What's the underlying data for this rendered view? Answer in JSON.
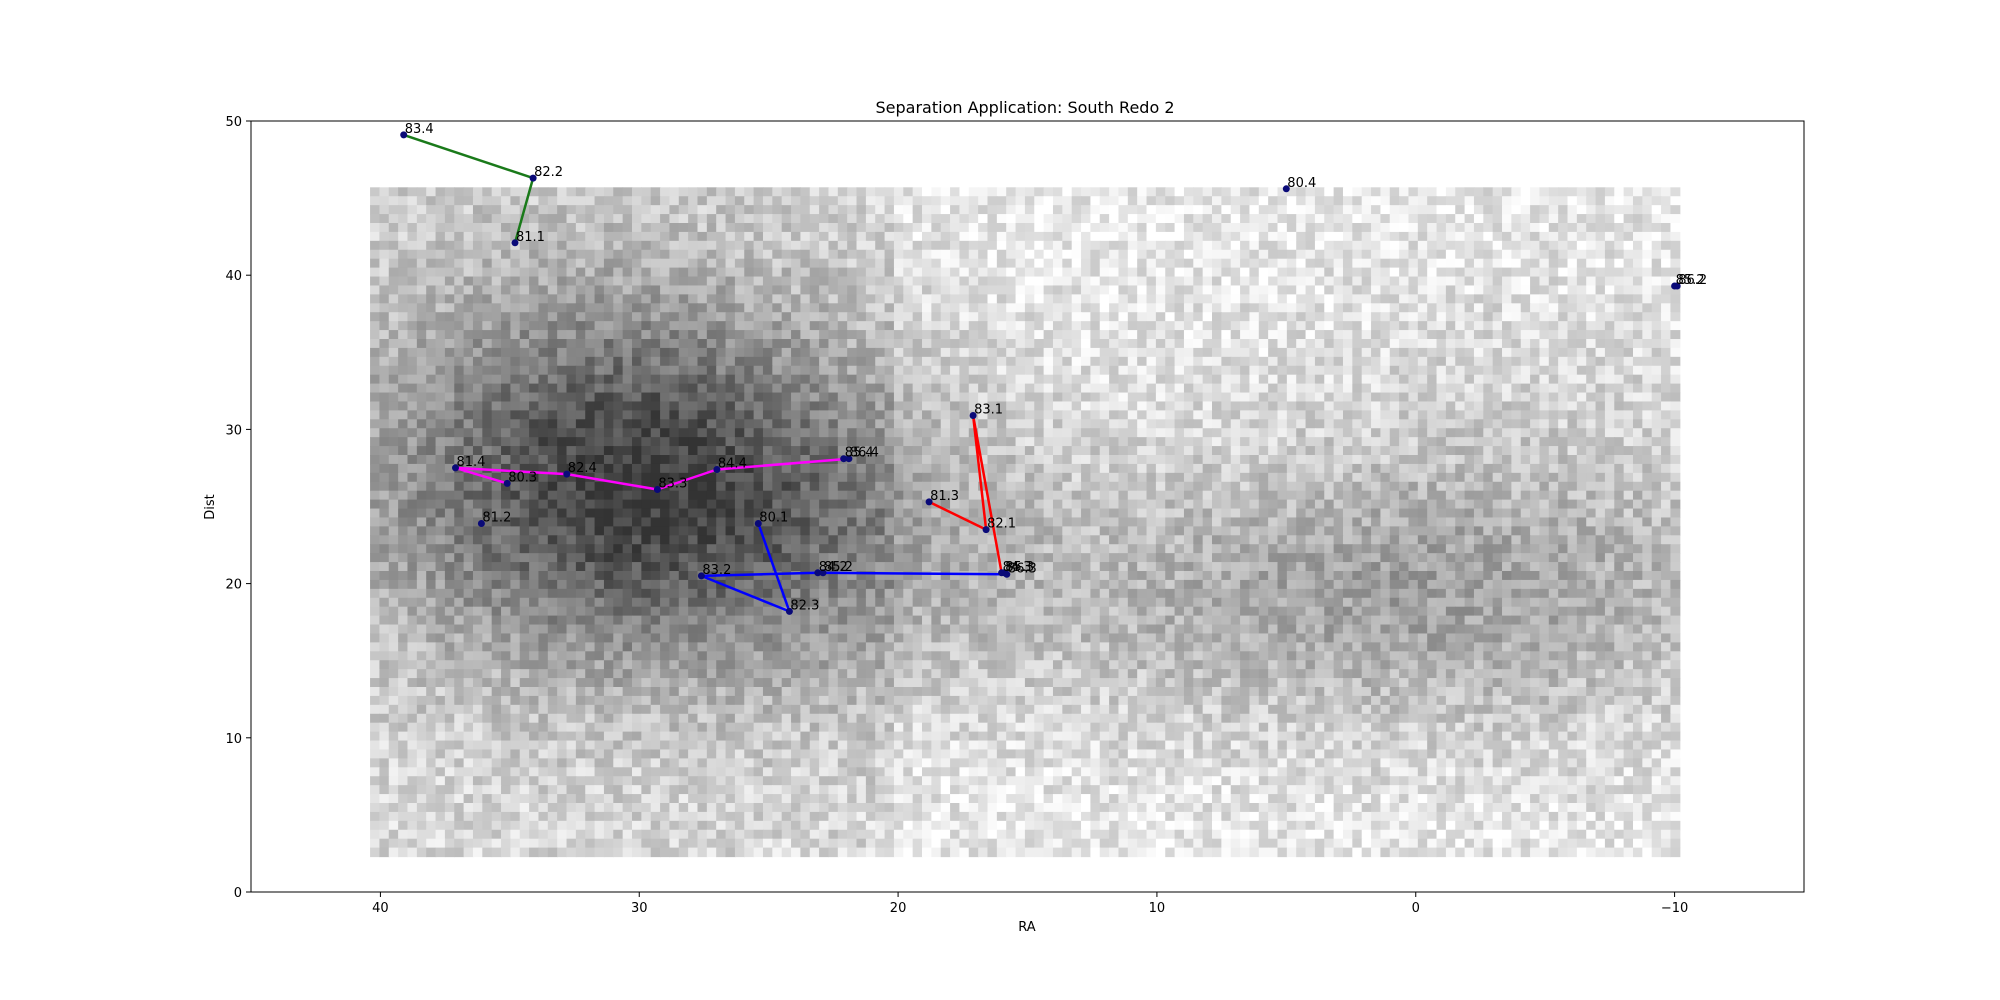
{
  "chart_data": {
    "type": "scatter",
    "title": "Separation Application: South Redo 2",
    "xlabel": "RA",
    "ylabel": "Dist",
    "xlim": [
      45,
      -15
    ],
    "ylim": [
      0,
      50
    ],
    "x_axis_inverted": true,
    "x_ticks": [
      40,
      30,
      20,
      10,
      0,
      -10
    ],
    "x_tick_labels": [
      "40",
      "30",
      "20",
      "10",
      "0",
      "−10"
    ],
    "y_ticks": [
      0,
      10,
      20,
      30,
      40,
      50
    ],
    "y_tick_labels": [
      "0",
      "10",
      "20",
      "30",
      "40",
      "50"
    ],
    "grid": false,
    "background": {
      "type": "2d-histogram",
      "colormap": "greys",
      "x_range": [
        40.4,
        -10.2
      ],
      "y_range": [
        2.3,
        45.7
      ]
    },
    "marker_color": "#0a0a78",
    "points": [
      {
        "label": "83.4",
        "x": 39.1,
        "y": 49.1
      },
      {
        "label": "82.2",
        "x": 34.1,
        "y": 46.3
      },
      {
        "label": "81.1",
        "x": 34.8,
        "y": 42.1
      },
      {
        "label": "80.4",
        "x": 5.0,
        "y": 45.6
      },
      {
        "label": "86.2",
        "x": -10.1,
        "y": 39.3
      },
      {
        "label": "85.2",
        "x": -10.0,
        "y": 39.3
      },
      {
        "label": "83.1",
        "x": 17.1,
        "y": 30.9
      },
      {
        "label": "81.3",
        "x": 18.8,
        "y": 25.3
      },
      {
        "label": "82.1",
        "x": 16.6,
        "y": 23.5
      },
      {
        "label": "84.3",
        "x": 16.0,
        "y": 20.7
      },
      {
        "label": "85.3",
        "x": 15.9,
        "y": 20.7
      },
      {
        "label": "81.4",
        "x": 37.1,
        "y": 27.5
      },
      {
        "label": "80.3",
        "x": 35.1,
        "y": 26.5
      },
      {
        "label": "82.4",
        "x": 32.8,
        "y": 27.1
      },
      {
        "label": "83.3",
        "x": 29.3,
        "y": 26.1
      },
      {
        "label": "84.4",
        "x": 27.0,
        "y": 27.4
      },
      {
        "label": "85.4",
        "x": 22.1,
        "y": 28.1
      },
      {
        "label": "86.4",
        "x": 21.9,
        "y": 28.1
      },
      {
        "label": "81.2",
        "x": 36.1,
        "y": 23.9
      },
      {
        "label": "80.1",
        "x": 25.4,
        "y": 23.9
      },
      {
        "label": "83.2",
        "x": 27.6,
        "y": 20.5
      },
      {
        "label": "84.2",
        "x": 23.1,
        "y": 20.7
      },
      {
        "label": "85.2",
        "x": 22.9,
        "y": 20.7
      },
      {
        "label": "82.3",
        "x": 24.2,
        "y": 18.2
      },
      {
        "label": "86.3",
        "x": 15.8,
        "y": 20.6
      }
    ],
    "series": [
      {
        "color": "#1a7a1a",
        "points": [
          [
            39.1,
            49.1
          ],
          [
            34.1,
            46.3
          ],
          [
            34.8,
            42.1
          ]
        ]
      },
      {
        "color": "#ff0000",
        "points": [
          [
            18.8,
            25.3
          ],
          [
            16.6,
            23.5
          ],
          [
            17.1,
            30.9
          ],
          [
            16.0,
            20.7
          ]
        ]
      },
      {
        "color": "#ff00ff",
        "points": [
          [
            35.1,
            26.5
          ],
          [
            37.1,
            27.5
          ],
          [
            32.8,
            27.1
          ],
          [
            29.3,
            26.1
          ],
          [
            27.0,
            27.4
          ],
          [
            21.9,
            28.1
          ]
        ]
      },
      {
        "color": "#0000ff",
        "points": [
          [
            25.4,
            23.9
          ],
          [
            24.2,
            18.2
          ],
          [
            27.6,
            20.5
          ],
          [
            23.1,
            20.7
          ],
          [
            15.8,
            20.6
          ]
        ]
      }
    ]
  }
}
